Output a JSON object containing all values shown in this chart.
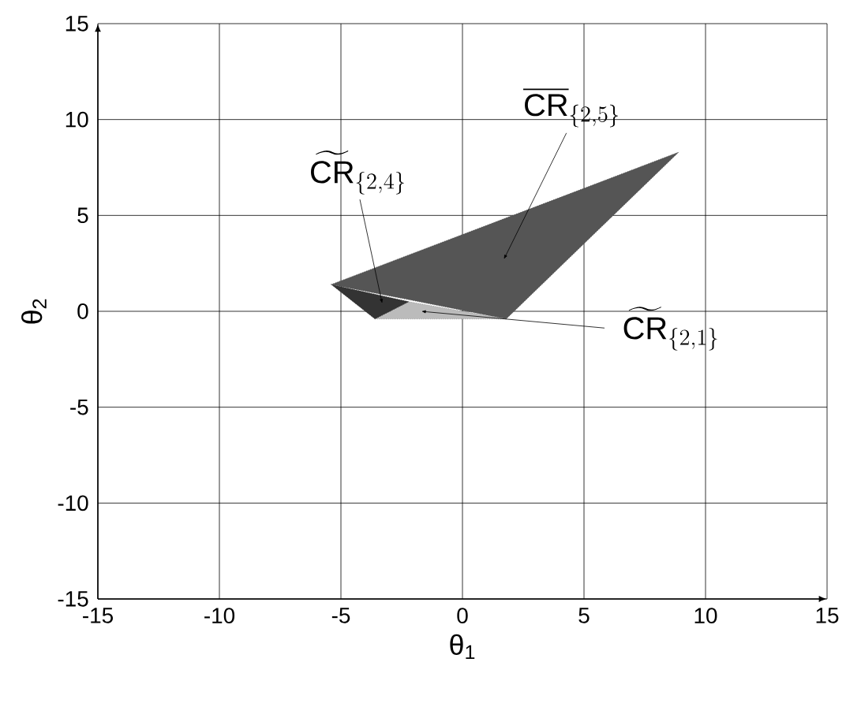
{
  "chart_data": {
    "type": "area",
    "xlabel": "θ$_{1}$",
    "ylabel": "θ$_{2}$",
    "xlim": [
      -15,
      15
    ],
    "ylim": [
      -15,
      15
    ],
    "xticks": [
      -15,
      -10,
      -5,
      0,
      5,
      10,
      15
    ],
    "yticks": [
      -15,
      -10,
      -5,
      0,
      5,
      10,
      15
    ],
    "grid": true,
    "line_style": "dotted",
    "series": [
      {
        "color": "#555555",
        "x": [
          -5.4,
          8.9,
          1.8
        ],
        "values": [
          1.4,
          8.3,
          -0.4
        ]
      },
      {
        "color": "#bbbbbb",
        "x": [
          -3.6,
          1.8,
          -2.2
        ],
        "values": [
          -0.4,
          -0.4,
          0.5
        ]
      },
      {
        "color": "#333333",
        "x": [
          -5.4,
          -3.6,
          -2.2
        ],
        "values": [
          1.4,
          -0.4,
          0.5
        ]
      }
    ],
    "annotations": [
      {
        "text": "\\overline{\\mathrm{CR}}_{\\{2,5\\}}",
        "x": 1.7,
        "y": 2.7
      },
      {
        "text": "\\widetilde{\\mathrm{CR}}_{\\{2,4\\}}",
        "x": -3.3,
        "y": 0.4
      },
      {
        "text": "\\widetilde{\\mathrm{CR}}_{\\{2,1\\}}",
        "x": -1.7,
        "y": 0.0
      }
    ]
  }
}
